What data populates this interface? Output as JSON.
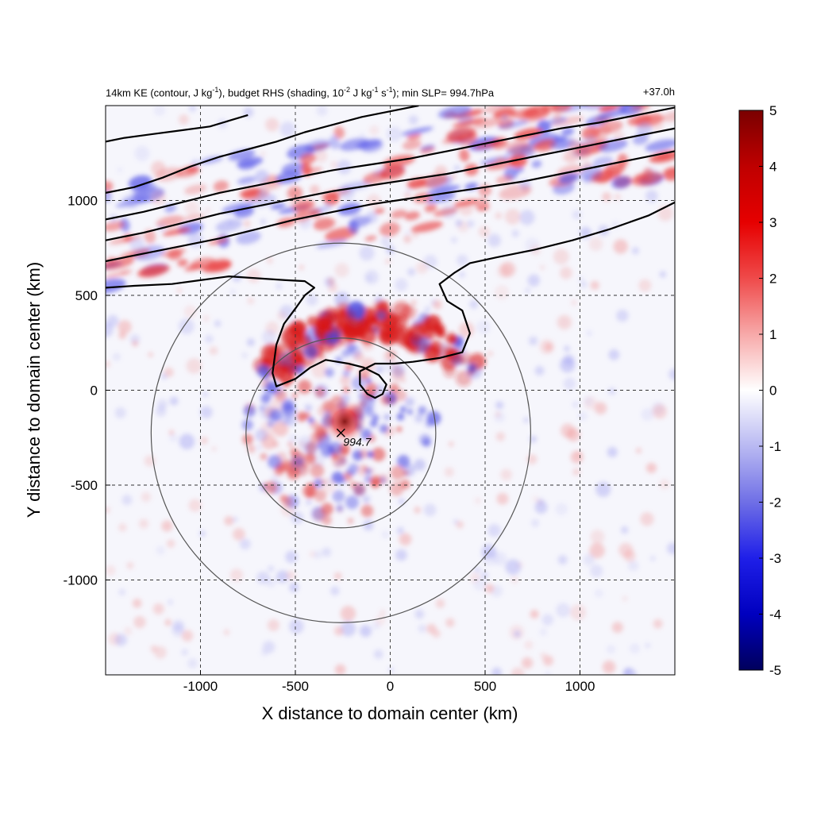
{
  "chart_data": {
    "type": "heatmap",
    "title_left": "14km KE (contour, J kg-1), budget RHS (shading, 10-2 J kg-1 s-1); min SLP= 994.7hPa",
    "title_left_parts": {
      "a": "14km KE (contour, J kg",
      "sup1": "-1",
      "b": "), budget RHS (shading, 10",
      "sup2": "-2",
      "c": " J kg",
      "sup3": "-1",
      "d": " s",
      "sup4": "-1",
      "e": "); min SLP= 994.7hPa"
    },
    "title_right": "+37.0h",
    "xlabel": "X distance to domain center (km)",
    "ylabel": "Y distance to domain center (km)",
    "xlim": [
      -1500,
      1500
    ],
    "ylim": [
      -1500,
      1500
    ],
    "xticks": [
      -1000,
      -500,
      0,
      500,
      1000
    ],
    "xtick_labels": [
      "-1000",
      "-500",
      "0",
      "500",
      "1000"
    ],
    "yticks": [
      -1000,
      -500,
      0,
      500,
      1000
    ],
    "ytick_labels": [
      "-1000",
      "-500",
      "0",
      "500",
      "1000"
    ],
    "grid": "dashed",
    "colorbar": {
      "min": -5,
      "max": 5,
      "ticks": [
        5,
        4,
        3,
        2,
        1,
        0,
        -1,
        -2,
        -3,
        -4,
        -5
      ],
      "tick_labels": [
        "5",
        "4",
        "3",
        "2",
        "1",
        "0",
        "-1",
        "-2",
        "-3",
        "-4",
        "-5"
      ],
      "colors": [
        "#00005c",
        "#0000e6",
        "#7f7fe0",
        "#ffffff",
        "#e66b6b",
        "#e60000",
        "#7a0000"
      ]
    },
    "center_marker": {
      "x": -260,
      "y": -225,
      "label": "994.7"
    },
    "range_rings_km": [
      500,
      1000
    ],
    "ke_contours": [
      [
        [
          -1500,
          540
        ],
        [
          -1350,
          550
        ],
        [
          -1150,
          560
        ],
        [
          -1000,
          580
        ],
        [
          -850,
          600
        ],
        [
          -700,
          590
        ],
        [
          -550,
          580
        ],
        [
          -450,
          575
        ],
        [
          -400,
          540
        ],
        [
          -450,
          500
        ],
        [
          -500,
          430
        ],
        [
          -560,
          350
        ],
        [
          -600,
          240
        ],
        [
          -620,
          90
        ],
        [
          -600,
          20
        ],
        [
          -500,
          60
        ],
        [
          -420,
          120
        ],
        [
          -340,
          160
        ],
        [
          -220,
          140
        ],
        [
          -140,
          120
        ],
        [
          -60,
          80
        ],
        [
          -20,
          30
        ],
        [
          -40,
          -20
        ],
        [
          -80,
          -40
        ],
        [
          -120,
          -20
        ],
        [
          -160,
          30
        ],
        [
          -160,
          100
        ],
        [
          -80,
          140
        ],
        [
          20,
          140
        ],
        [
          120,
          150
        ],
        [
          260,
          170
        ],
        [
          380,
          200
        ],
        [
          420,
          300
        ],
        [
          380,
          420
        ],
        [
          300,
          470
        ],
        [
          260,
          560
        ],
        [
          340,
          620
        ],
        [
          420,
          670
        ],
        [
          560,
          700
        ],
        [
          760,
          740
        ],
        [
          960,
          790
        ],
        [
          1160,
          850
        ],
        [
          1360,
          920
        ],
        [
          1500,
          990
        ]
      ],
      [
        [
          -1500,
          680
        ],
        [
          -1300,
          720
        ],
        [
          -1100,
          760
        ],
        [
          -900,
          800
        ],
        [
          -700,
          850
        ],
        [
          -500,
          900
        ],
        [
          -300,
          940
        ],
        [
          -100,
          980
        ],
        [
          100,
          1010
        ],
        [
          300,
          1040
        ],
        [
          500,
          1070
        ],
        [
          700,
          1100
        ],
        [
          900,
          1140
        ],
        [
          1100,
          1180
        ],
        [
          1300,
          1220
        ],
        [
          1500,
          1260
        ]
      ],
      [
        [
          -1500,
          790
        ],
        [
          -1300,
          830
        ],
        [
          -1100,
          880
        ],
        [
          -900,
          930
        ],
        [
          -700,
          970
        ],
        [
          -500,
          1010
        ],
        [
          -300,
          1050
        ],
        [
          -100,
          1080
        ],
        [
          100,
          1110
        ],
        [
          300,
          1140
        ],
        [
          500,
          1180
        ],
        [
          700,
          1220
        ],
        [
          900,
          1260
        ],
        [
          1100,
          1300
        ],
        [
          1300,
          1340
        ],
        [
          1500,
          1380
        ]
      ],
      [
        [
          -1500,
          900
        ],
        [
          -1300,
          940
        ],
        [
          -1100,
          990
        ],
        [
          -900,
          1040
        ],
        [
          -700,
          1080
        ],
        [
          -500,
          1120
        ],
        [
          -300,
          1160
        ],
        [
          -100,
          1190
        ],
        [
          100,
          1220
        ],
        [
          300,
          1260
        ],
        [
          500,
          1300
        ],
        [
          700,
          1340
        ],
        [
          900,
          1380
        ],
        [
          1100,
          1410
        ],
        [
          1300,
          1450
        ],
        [
          1500,
          1490
        ]
      ],
      [
        [
          -1500,
          1040
        ],
        [
          -1350,
          1070
        ],
        [
          -1200,
          1120
        ],
        [
          -1050,
          1180
        ],
        [
          -900,
          1230
        ],
        [
          -750,
          1270
        ],
        [
          -600,
          1310
        ],
        [
          -450,
          1360
        ],
        [
          -300,
          1400
        ],
        [
          -150,
          1440
        ],
        [
          0,
          1470
        ],
        [
          150,
          1500
        ]
      ],
      [
        [
          -1500,
          1310
        ],
        [
          -1400,
          1330
        ],
        [
          -1250,
          1350
        ],
        [
          -1100,
          1370
        ],
        [
          -950,
          1390
        ],
        [
          -850,
          1420
        ],
        [
          -750,
          1450
        ]
      ]
    ]
  }
}
